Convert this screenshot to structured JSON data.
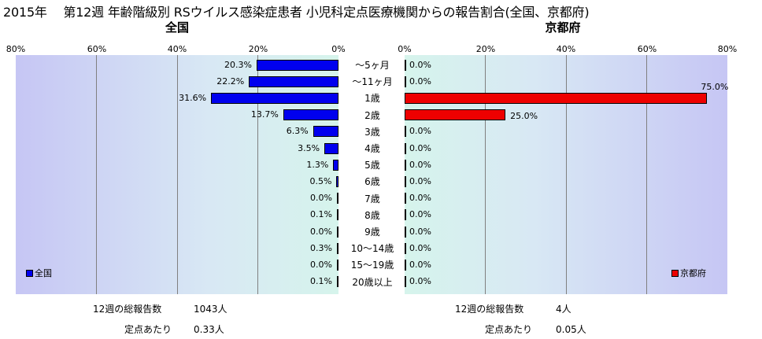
{
  "title": "2015年　 第12週 年齢階級別 RSウイルス感染症患者 小児科定点医療機関からの報告割合(全国、京都府)",
  "chart_data": [
    {
      "type": "bar",
      "orientation": "horizontal",
      "title": "全国",
      "categories": [
        "～5ヶ月",
        "～11ヶ月",
        "1歳",
        "2歳",
        "3歳",
        "4歳",
        "5歳",
        "6歳",
        "7歳",
        "8歳",
        "9歳",
        "10～14歳",
        "15～19歳",
        "20歳以上"
      ],
      "series": [
        {
          "name": "全国",
          "color": "#0000ee",
          "values": [
            20.3,
            22.2,
            31.6,
            13.7,
            6.3,
            3.5,
            1.3,
            0.5,
            0.0,
            0.1,
            0.0,
            0.3,
            0.0,
            0.1
          ],
          "labels": [
            "20.3%",
            "22.2%",
            "31.6%",
            "13.7%",
            "6.3%",
            "3.5%",
            "1.3%",
            "0.5%",
            "0.0%",
            "0.1%",
            "0.0%",
            "0.3%",
            "0.0%",
            "0.1%"
          ]
        }
      ],
      "xlim": [
        0,
        80
      ],
      "xticks": [
        "80%",
        "60%",
        "40%",
        "20%",
        "0%"
      ],
      "direction": "reversed",
      "legend": "bottom-left",
      "grid": true
    },
    {
      "type": "bar",
      "orientation": "horizontal",
      "title": "京都府",
      "categories": [
        "～5ヶ月",
        "～11ヶ月",
        "1歳",
        "2歳",
        "3歳",
        "4歳",
        "5歳",
        "6歳",
        "7歳",
        "8歳",
        "9歳",
        "10～14歳",
        "15～19歳",
        "20歳以上"
      ],
      "series": [
        {
          "name": "京都府",
          "color": "#ee0000",
          "values": [
            0.0,
            0.0,
            75.0,
            25.0,
            0.0,
            0.0,
            0.0,
            0.0,
            0.0,
            0.0,
            0.0,
            0.0,
            0.0,
            0.0
          ],
          "labels": [
            "0.0%",
            "0.0%",
            "75.0%",
            "25.0%",
            "0.0%",
            "0.0%",
            "0.0%",
            "0.0%",
            "0.0%",
            "0.0%",
            "0.0%",
            "0.0%",
            "0.0%",
            "0.0%"
          ]
        }
      ],
      "xlim": [
        0,
        80
      ],
      "xticks": [
        "0%",
        "20%",
        "40%",
        "60%",
        "80%"
      ],
      "direction": "normal",
      "legend": "bottom-right",
      "grid": true
    }
  ],
  "stats": {
    "national": {
      "total_label": "12週の総報告数",
      "total_value": "1043人",
      "per_label": "定点あたり",
      "per_value": "0.33人"
    },
    "kyoto": {
      "total_label": "12週の総報告数",
      "total_value": "4人",
      "per_label": "定点あたり",
      "per_value": "0.05人"
    }
  }
}
